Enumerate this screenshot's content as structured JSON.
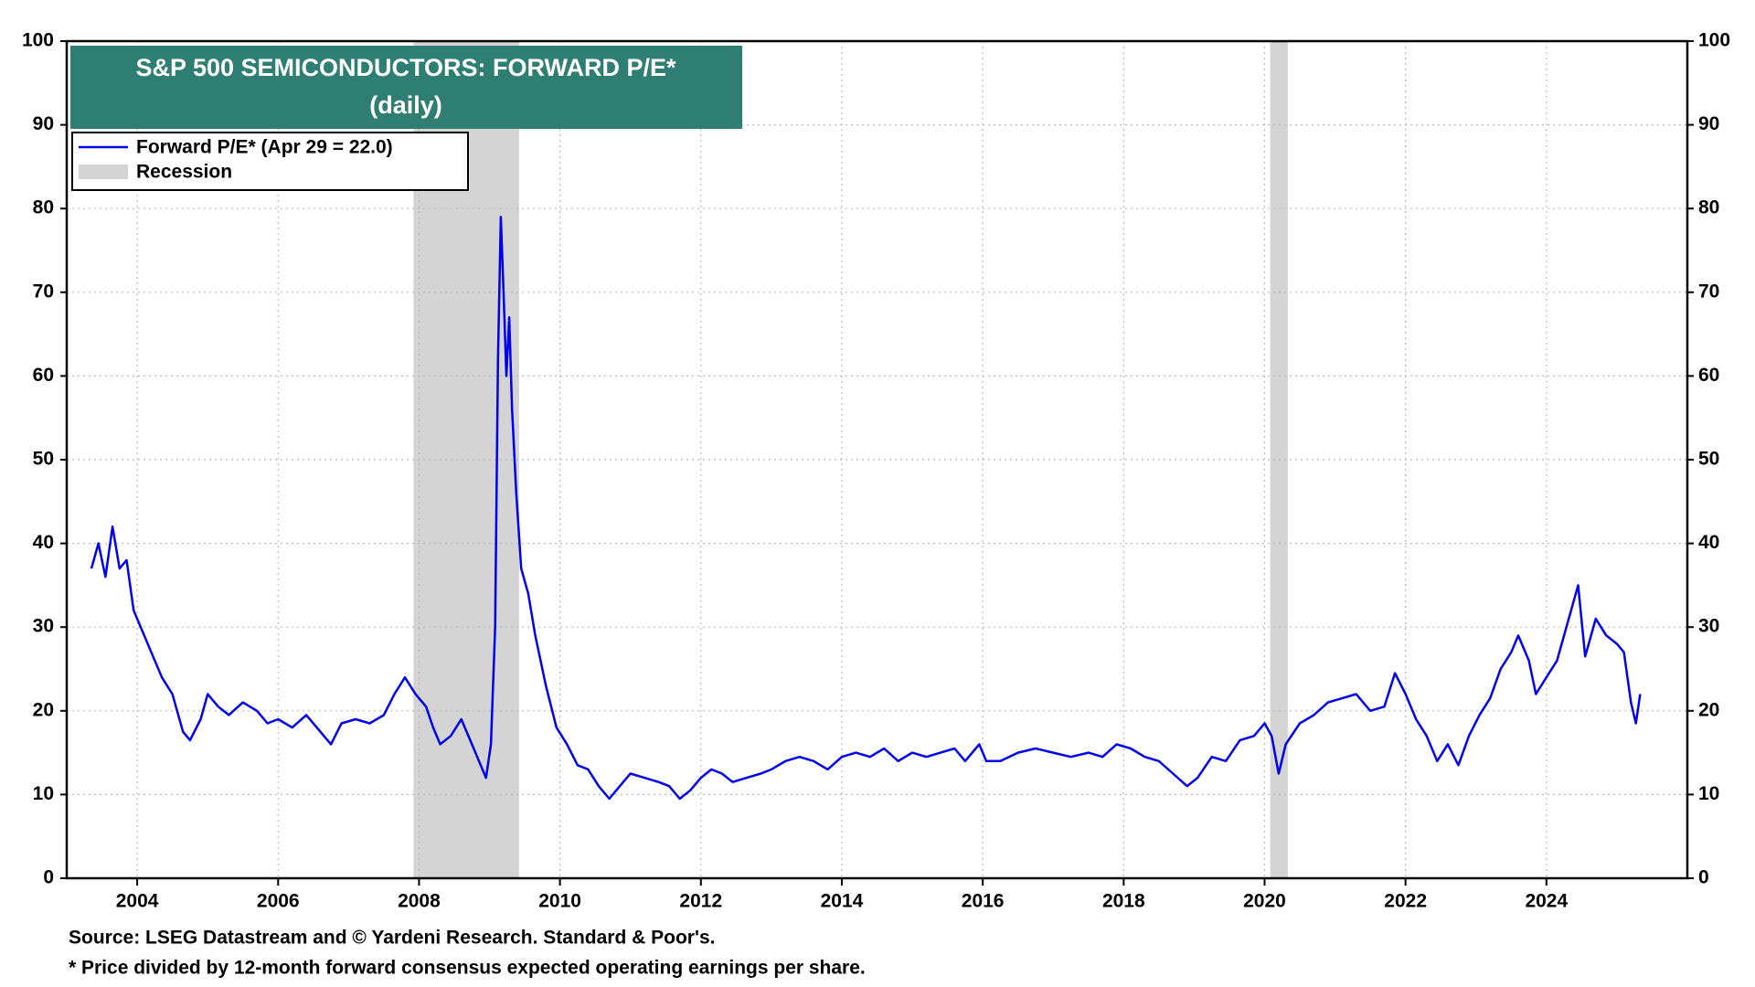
{
  "chart_data": {
    "type": "line",
    "title": "S&P 500 SEMICONDUCTORS: FORWARD P/E*",
    "subtitle": "(daily)",
    "notes": [
      "Source: LSEG Datastream and © Yardeni Research. Standard & Poor's.",
      "* Price divided by 12-month forward consensus expected operating earnings per share."
    ],
    "xlim": [
      2003,
      2026
    ],
    "xticks": [
      2004,
      2006,
      2008,
      2010,
      2012,
      2014,
      2016,
      2018,
      2020,
      2022,
      2024
    ],
    "ylim": [
      0,
      100
    ],
    "yticks": [
      0,
      10,
      20,
      30,
      40,
      50,
      60,
      70,
      80,
      90,
      100
    ],
    "grid": true,
    "recession": {
      "name": "Recession",
      "color": "#d4d4d4",
      "periods": [
        [
          2007.92,
          2009.42
        ],
        [
          2020.08,
          2020.33
        ]
      ]
    },
    "x": [
      2003.35,
      2003.45,
      2003.55,
      2003.65,
      2003.75,
      2003.85,
      2003.95,
      2004.05,
      2004.2,
      2004.35,
      2004.5,
      2004.65,
      2004.75,
      2004.9,
      2005.0,
      2005.15,
      2005.3,
      2005.5,
      2005.7,
      2005.85,
      2006.0,
      2006.2,
      2006.4,
      2006.6,
      2006.75,
      2006.9,
      2007.1,
      2007.3,
      2007.5,
      2007.65,
      2007.8,
      2007.95,
      2008.1,
      2008.2,
      2008.3,
      2008.45,
      2008.6,
      2008.75,
      2008.85,
      2008.95,
      2009.02,
      2009.08,
      2009.12,
      2009.16,
      2009.2,
      2009.24,
      2009.28,
      2009.32,
      2009.38,
      2009.45,
      2009.55,
      2009.65,
      2009.8,
      2009.95,
      2010.1,
      2010.25,
      2010.4,
      2010.55,
      2010.7,
      2010.85,
      2011.0,
      2011.2,
      2011.4,
      2011.55,
      2011.7,
      2011.85,
      2012.0,
      2012.15,
      2012.3,
      2012.45,
      2012.65,
      2012.85,
      2013.0,
      2013.2,
      2013.4,
      2013.6,
      2013.8,
      2014.0,
      2014.2,
      2014.4,
      2014.6,
      2014.8,
      2015.0,
      2015.2,
      2015.4,
      2015.6,
      2015.75,
      2015.95,
      2016.05,
      2016.25,
      2016.5,
      2016.75,
      2017.0,
      2017.25,
      2017.5,
      2017.7,
      2017.9,
      2018.1,
      2018.3,
      2018.5,
      2018.7,
      2018.9,
      2019.05,
      2019.25,
      2019.45,
      2019.65,
      2019.85,
      2020.0,
      2020.1,
      2020.2,
      2020.3,
      2020.5,
      2020.7,
      2020.9,
      2021.1,
      2021.3,
      2021.5,
      2021.7,
      2021.85,
      2022.0,
      2022.15,
      2022.3,
      2022.45,
      2022.6,
      2022.75,
      2022.9,
      2023.05,
      2023.2,
      2023.35,
      2023.5,
      2023.6,
      2023.75,
      2023.85,
      2024.0,
      2024.15,
      2024.25,
      2024.35,
      2024.45,
      2024.55,
      2024.7,
      2024.85,
      2025.0,
      2025.1,
      2025.2,
      2025.27,
      2025.33
    ],
    "series": [
      {
        "name": "Forward P/E* (Apr 29 = 22.0)",
        "color": "#0000ee",
        "values": [
          37,
          40,
          36,
          42,
          37,
          38,
          32,
          30,
          27,
          24,
          22,
          17.5,
          16.5,
          19,
          22,
          20.5,
          19.5,
          21,
          20,
          18.5,
          19,
          18,
          19.5,
          17.5,
          16,
          18.5,
          19,
          18.5,
          19.5,
          22,
          24,
          22,
          20.5,
          18,
          16,
          17,
          19,
          16,
          14,
          12,
          16,
          30,
          62,
          79,
          70,
          60,
          67,
          56,
          46,
          37,
          34,
          29,
          23,
          18,
          16,
          13.5,
          13,
          11,
          9.5,
          11,
          12.5,
          12,
          11.5,
          11,
          9.5,
          10.5,
          12,
          13,
          12.5,
          11.5,
          12,
          12.5,
          13,
          14,
          14.5,
          14,
          13,
          14.5,
          15,
          14.5,
          15.5,
          14,
          15,
          14.5,
          15,
          15.5,
          14,
          16,
          14,
          14,
          15,
          15.5,
          15,
          14.5,
          15,
          14.5,
          16,
          15.5,
          14.5,
          14,
          12.5,
          11,
          12,
          14.5,
          14,
          16.5,
          17,
          18.5,
          17,
          12.5,
          16,
          18.5,
          19.5,
          21,
          21.5,
          22,
          20,
          20.5,
          24.5,
          22,
          19,
          17,
          14,
          16,
          13.5,
          17,
          19.5,
          21.5,
          25,
          27,
          29,
          26,
          22,
          24,
          26,
          29,
          32,
          35,
          26.5,
          31,
          29,
          28,
          27,
          21,
          18.5,
          22
        ]
      }
    ]
  }
}
